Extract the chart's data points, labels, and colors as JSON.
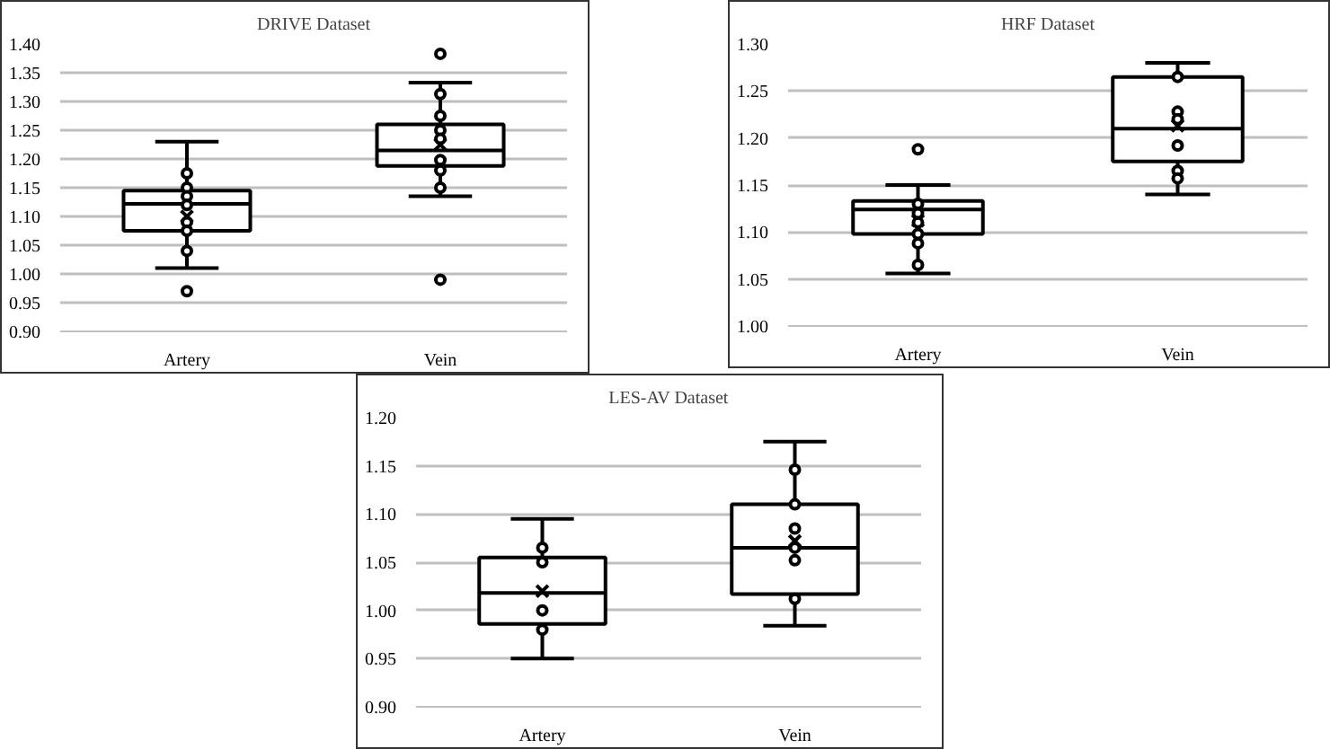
{
  "chart_data": [
    {
      "type": "box",
      "title": "DRIVE Dataset",
      "categories": [
        "Artery",
        "Vein"
      ],
      "boxes": [
        {
          "low": 1.01,
          "q1": 1.075,
          "median": 1.122,
          "q3": 1.145,
          "high": 1.23,
          "mean": 1.1,
          "outliers": [
            0.97
          ]
        },
        {
          "low": 1.135,
          "q1": 1.188,
          "median": 1.215,
          "q3": 1.26,
          "high": 1.333,
          "mean": 1.225,
          "outliers": [
            1.383,
            0.99
          ]
        }
      ],
      "series": [
        {
          "type": "scatter",
          "x": [
            "Artery",
            "Artery",
            "Artery",
            "Artery",
            "Artery",
            "Artery",
            "Artery",
            "Vein",
            "Vein",
            "Vein",
            "Vein",
            "Vein",
            "Vein",
            "Vein"
          ],
          "values": [
            1.175,
            1.15,
            1.135,
            1.12,
            1.09,
            1.075,
            1.04,
            1.313,
            1.275,
            1.25,
            1.235,
            1.198,
            1.18,
            1.15
          ],
          "color": "#000000",
          "marker": "circle"
        }
      ],
      "ylim": [
        0.9,
        1.4
      ],
      "yticks": [
        {
          "value": 0.9,
          "label": "0.90"
        },
        {
          "value": 0.95,
          "label": "0.95"
        },
        {
          "value": 1.0,
          "label": "1.00"
        },
        {
          "value": 1.05,
          "label": "1.05"
        },
        {
          "value": 1.1,
          "label": "1.10"
        },
        {
          "value": 1.15,
          "label": "1.15"
        },
        {
          "value": 1.2,
          "label": "1.20"
        },
        {
          "value": 1.25,
          "label": "1.25"
        },
        {
          "value": 1.3,
          "label": "1.30"
        },
        {
          "value": 1.35,
          "label": "1.35"
        },
        {
          "value": 1.4,
          "label": "1.40"
        }
      ],
      "grid": "y"
    },
    {
      "type": "box",
      "title": "HRF Dataset",
      "categories": [
        "Artery",
        "Vein"
      ],
      "boxes": [
        {
          "low": 1.056,
          "q1": 1.098,
          "median": 1.124,
          "q3": 1.133,
          "high": 1.15,
          "mean": 1.112,
          "outliers": [
            1.188
          ]
        },
        {
          "low": 1.14,
          "q1": 1.175,
          "median": 1.21,
          "q3": 1.265,
          "high": 1.28,
          "mean": 1.213
        }
      ],
      "series": [
        {
          "type": "scatter",
          "x": [
            "Artery",
            "Artery",
            "Artery",
            "Artery",
            "Artery",
            "Artery",
            "Vein",
            "Vein",
            "Vein",
            "Vein",
            "Vein",
            "Vein"
          ],
          "values": [
            1.13,
            1.12,
            1.11,
            1.098,
            1.088,
            1.065,
            1.265,
            1.228,
            1.22,
            1.192,
            1.165,
            1.157
          ],
          "color": "#000000",
          "marker": "circle"
        }
      ],
      "ylim": [
        1.0,
        1.3
      ],
      "yticks": [
        {
          "value": 1.0,
          "label": "1.00"
        },
        {
          "value": 1.05,
          "label": "1.05"
        },
        {
          "value": 1.1,
          "label": "1.10"
        },
        {
          "value": 1.15,
          "label": "1.15"
        },
        {
          "value": 1.2,
          "label": "1.20"
        },
        {
          "value": 1.25,
          "label": "1.25"
        },
        {
          "value": 1.3,
          "label": "1.30"
        }
      ],
      "grid": "y"
    },
    {
      "type": "box",
      "title": "LES-AV Dataset",
      "categories": [
        "Artery",
        "Vein"
      ],
      "boxes": [
        {
          "low": 0.95,
          "q1": 0.986,
          "median": 1.018,
          "q3": 1.055,
          "high": 1.095,
          "mean": 1.02
        },
        {
          "low": 0.984,
          "q1": 1.017,
          "median": 1.065,
          "q3": 1.11,
          "high": 1.175,
          "mean": 1.072
        }
      ],
      "series": [
        {
          "type": "scatter",
          "x": [
            "Artery",
            "Artery",
            "Artery",
            "Artery",
            "Vein",
            "Vein",
            "Vein",
            "Vein",
            "Vein",
            "Vein"
          ],
          "values": [
            1.065,
            1.05,
            1.0,
            0.98,
            1.146,
            1.11,
            1.085,
            1.065,
            1.052,
            1.012
          ],
          "color": "#000000",
          "marker": "circle"
        }
      ],
      "ylim": [
        0.9,
        1.2
      ],
      "yticks": [
        {
          "value": 0.9,
          "label": "0.90"
        },
        {
          "value": 0.95,
          "label": "0.95"
        },
        {
          "value": 1.0,
          "label": "1.00"
        },
        {
          "value": 1.05,
          "label": "1.05"
        },
        {
          "value": 1.1,
          "label": "1.10"
        },
        {
          "value": 1.15,
          "label": "1.15"
        },
        {
          "value": 1.2,
          "label": "1.20"
        }
      ],
      "grid": "y"
    }
  ]
}
